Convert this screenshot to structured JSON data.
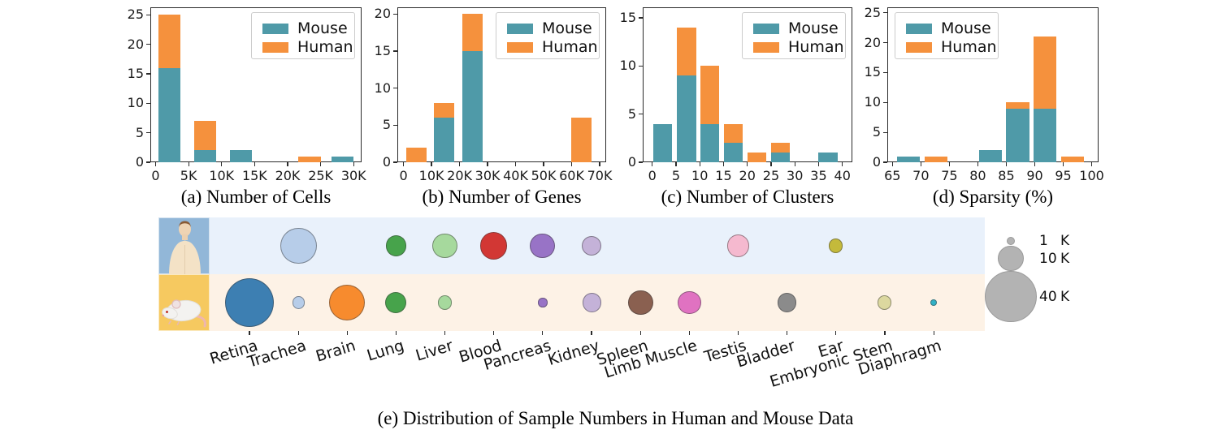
{
  "colors": {
    "mouse_series": "#4f9aa8",
    "human_series": "#f5913d",
    "human_row_bg": "#e9f1fb",
    "mouse_row_bg": "#fdf2e6",
    "human_icon_bg": "#92b7d8",
    "mouse_icon_bg": "#f6c960",
    "size_legend_circle": "#b3b3b3",
    "axis_color": "#2b2b2b"
  },
  "chart_data": [
    {
      "id": "cells",
      "type": "bar",
      "stacked": true,
      "title": "(a) Number of Cells",
      "series_names": [
        "Mouse",
        "Human"
      ],
      "legend_pos": "top-right",
      "xlim": [
        -0.8,
        31.2
      ],
      "ylim": [
        0,
        26.3
      ],
      "xticks": [
        0,
        5,
        10,
        15,
        20,
        25,
        30
      ],
      "xtick_labels": [
        "0",
        "5K",
        "10K",
        "15K",
        "20K",
        "25K",
        "30K"
      ],
      "yticks": [
        0,
        5,
        10,
        15,
        20,
        25
      ],
      "bars": [
        {
          "x0": 0.4,
          "x1": 3.8,
          "mouse": 16,
          "human": 9
        },
        {
          "x0": 5.8,
          "x1": 9.2,
          "mouse": 2,
          "human": 5
        },
        {
          "x0": 11.2,
          "x1": 14.6,
          "mouse": 2,
          "human": 0
        },
        {
          "x0": 21.6,
          "x1": 25.0,
          "mouse": 0,
          "human": 1
        },
        {
          "x0": 26.6,
          "x1": 30.0,
          "mouse": 1,
          "human": 0
        }
      ]
    },
    {
      "id": "genes",
      "type": "bar",
      "stacked": true,
      "title": "(b) Number of Genes",
      "series_names": [
        "Mouse",
        "Human"
      ],
      "legend_pos": "top-right",
      "xlim": [
        -2.2,
        72.3
      ],
      "ylim": [
        0,
        20.9
      ],
      "xticks": [
        0,
        10,
        20,
        30,
        40,
        50,
        60,
        70
      ],
      "xtick_labels": [
        "0",
        "10K",
        "20K",
        "30K",
        "40K",
        "50K",
        "60K",
        "70K"
      ],
      "yticks": [
        0,
        5,
        10,
        15,
        20
      ],
      "bars": [
        {
          "x0": 0.9,
          "x1": 8.1,
          "mouse": 0,
          "human": 2
        },
        {
          "x0": 10.9,
          "x1": 18.1,
          "mouse": 6,
          "human": 2
        },
        {
          "x0": 20.9,
          "x1": 28.1,
          "mouse": 15,
          "human": 5
        },
        {
          "x0": 59.9,
          "x1": 67.1,
          "mouse": 0,
          "human": 6
        }
      ]
    },
    {
      "id": "clusters",
      "type": "bar",
      "stacked": true,
      "title": "(c) Number of Clusters",
      "series_names": [
        "Mouse",
        "Human"
      ],
      "legend_pos": "top-right",
      "xlim": [
        -2,
        42.1
      ],
      "ylim": [
        0,
        16.1
      ],
      "xticks": [
        0,
        5,
        10,
        15,
        20,
        25,
        30,
        35,
        40
      ],
      "xtick_labels": [
        "0",
        "5",
        "10",
        "15",
        "20",
        "25",
        "30",
        "35",
        "40"
      ],
      "yticks": [
        0,
        5,
        10,
        15
      ],
      "bars": [
        {
          "x0": 0.2,
          "x1": 4.2,
          "mouse": 4,
          "human": 0
        },
        {
          "x0": 5.2,
          "x1": 9.2,
          "mouse": 9,
          "human": 5
        },
        {
          "x0": 10.1,
          "x1": 14.1,
          "mouse": 4,
          "human": 6
        },
        {
          "x0": 15.1,
          "x1": 19.1,
          "mouse": 2,
          "human": 2
        },
        {
          "x0": 20.0,
          "x1": 24.0,
          "mouse": 0,
          "human": 1
        },
        {
          "x0": 25.0,
          "x1": 29.0,
          "mouse": 1,
          "human": 1
        },
        {
          "x0": 35.0,
          "x1": 39.0,
          "mouse": 1,
          "human": 0
        }
      ]
    },
    {
      "id": "sparsity",
      "type": "bar",
      "stacked": true,
      "title": "(d) Sparsity (%)",
      "series_names": [
        "Mouse",
        "Human"
      ],
      "legend_pos": "top-left",
      "xlim": [
        64.1,
        101.2
      ],
      "ylim": [
        0,
        25.9
      ],
      "xticks": [
        65,
        70,
        75,
        80,
        85,
        90,
        95,
        100
      ],
      "xtick_labels": [
        "65",
        "70",
        "75",
        "80",
        "85",
        "90",
        "95",
        "100"
      ],
      "yticks": [
        0,
        5,
        10,
        15,
        20,
        25
      ],
      "bars": [
        {
          "x0": 65.8,
          "x1": 69.8,
          "mouse": 1,
          "human": 0
        },
        {
          "x0": 70.6,
          "x1": 74.6,
          "mouse": 0,
          "human": 1
        },
        {
          "x0": 80.2,
          "x1": 84.2,
          "mouse": 2,
          "human": 0
        },
        {
          "x0": 85.0,
          "x1": 89.0,
          "mouse": 9,
          "human": 1
        },
        {
          "x0": 89.8,
          "x1": 93.8,
          "mouse": 9,
          "human": 12
        },
        {
          "x0": 94.6,
          "x1": 98.6,
          "mouse": 0,
          "human": 1
        }
      ]
    },
    {
      "id": "samples",
      "type": "bubble",
      "title": "(e) Distribution of Sample Numbers in Human and Mouse Data",
      "rows": [
        "Human",
        "Mouse"
      ],
      "categories": [
        "Retina",
        "Trachea",
        "Brain",
        "Lung",
        "Liver",
        "Blood",
        "Pancreas",
        "Kidney",
        "Spleen",
        "Limb Muscle",
        "Testis",
        "Bladder",
        "Ear",
        "Embryonic Stem",
        "Diaphragm"
      ],
      "colors": [
        "#3d7fb2",
        "#b7cde9",
        "#f78b2e",
        "#47a34b",
        "#a6d99d",
        "#d23734",
        "#9873c6",
        "#c4b2d8",
        "#8a6050",
        "#e072c1",
        "#f5b9cf",
        "#8b8b8b",
        "#c4ba3b",
        "#dcd89f",
        "#30b1c6"
      ],
      "human_k": [
        0,
        20,
        0,
        6.3,
        9.6,
        11,
        9.6,
        5.8,
        0,
        0,
        7.8,
        0,
        3,
        0,
        0
      ],
      "mouse_k": [
        36,
        2.3,
        19.5,
        6.8,
        2.9,
        0,
        1.3,
        5.3,
        9.6,
        8.4,
        0,
        5.3,
        0,
        2.9,
        0.6
      ],
      "size_legend": [
        {
          "k": 1,
          "label": "1 K"
        },
        {
          "k": 10,
          "label": "10 K"
        },
        {
          "k": 40,
          "label": "40 K"
        }
      ]
    }
  ]
}
